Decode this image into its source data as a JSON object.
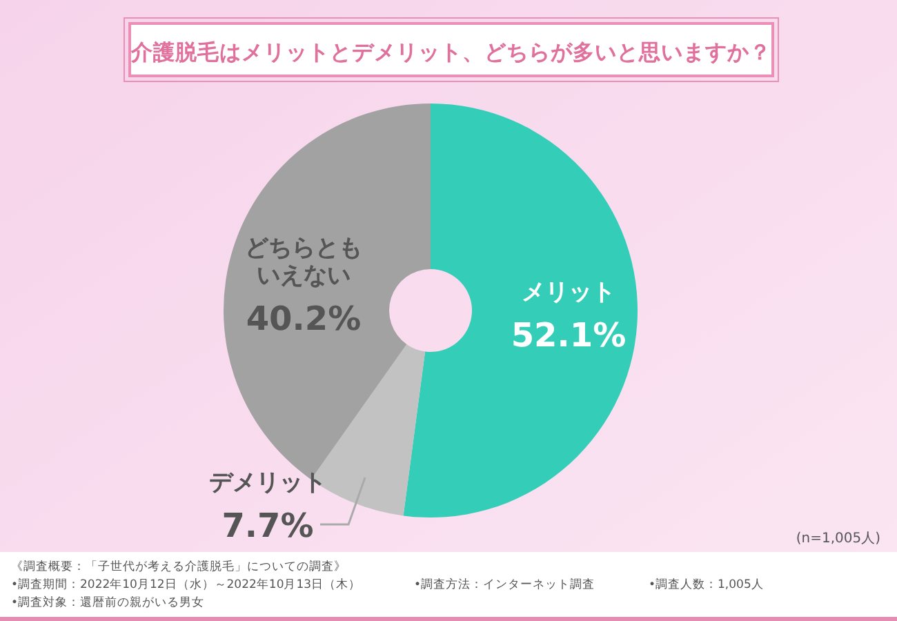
{
  "chart_data": {
    "type": "donut",
    "title": "介護脱毛はメリットとデメリット、どちらが多いと思いますか？",
    "categories": [
      "メリット",
      "デメリット",
      "どちらともいえない"
    ],
    "values": [
      52.1,
      7.7,
      40.2
    ],
    "value_labels": [
      "52.1%",
      "7.7%",
      "40.2%"
    ],
    "colors": [
      "#33cdb8",
      "#c2c2c2",
      "#a2a2a2"
    ],
    "legend": false,
    "annotations": [
      "(n=1,005人)",
      "《調査概要：「子世代が考える介護脱毛」についての調査》",
      "•調査期間：2022年10月12日（水）～2022年10月13日（木）",
      "•調査対象：還暦前の親がいる男女",
      "•調査方法：インターネット調査",
      "•調査人数：1,005人"
    ]
  }
}
